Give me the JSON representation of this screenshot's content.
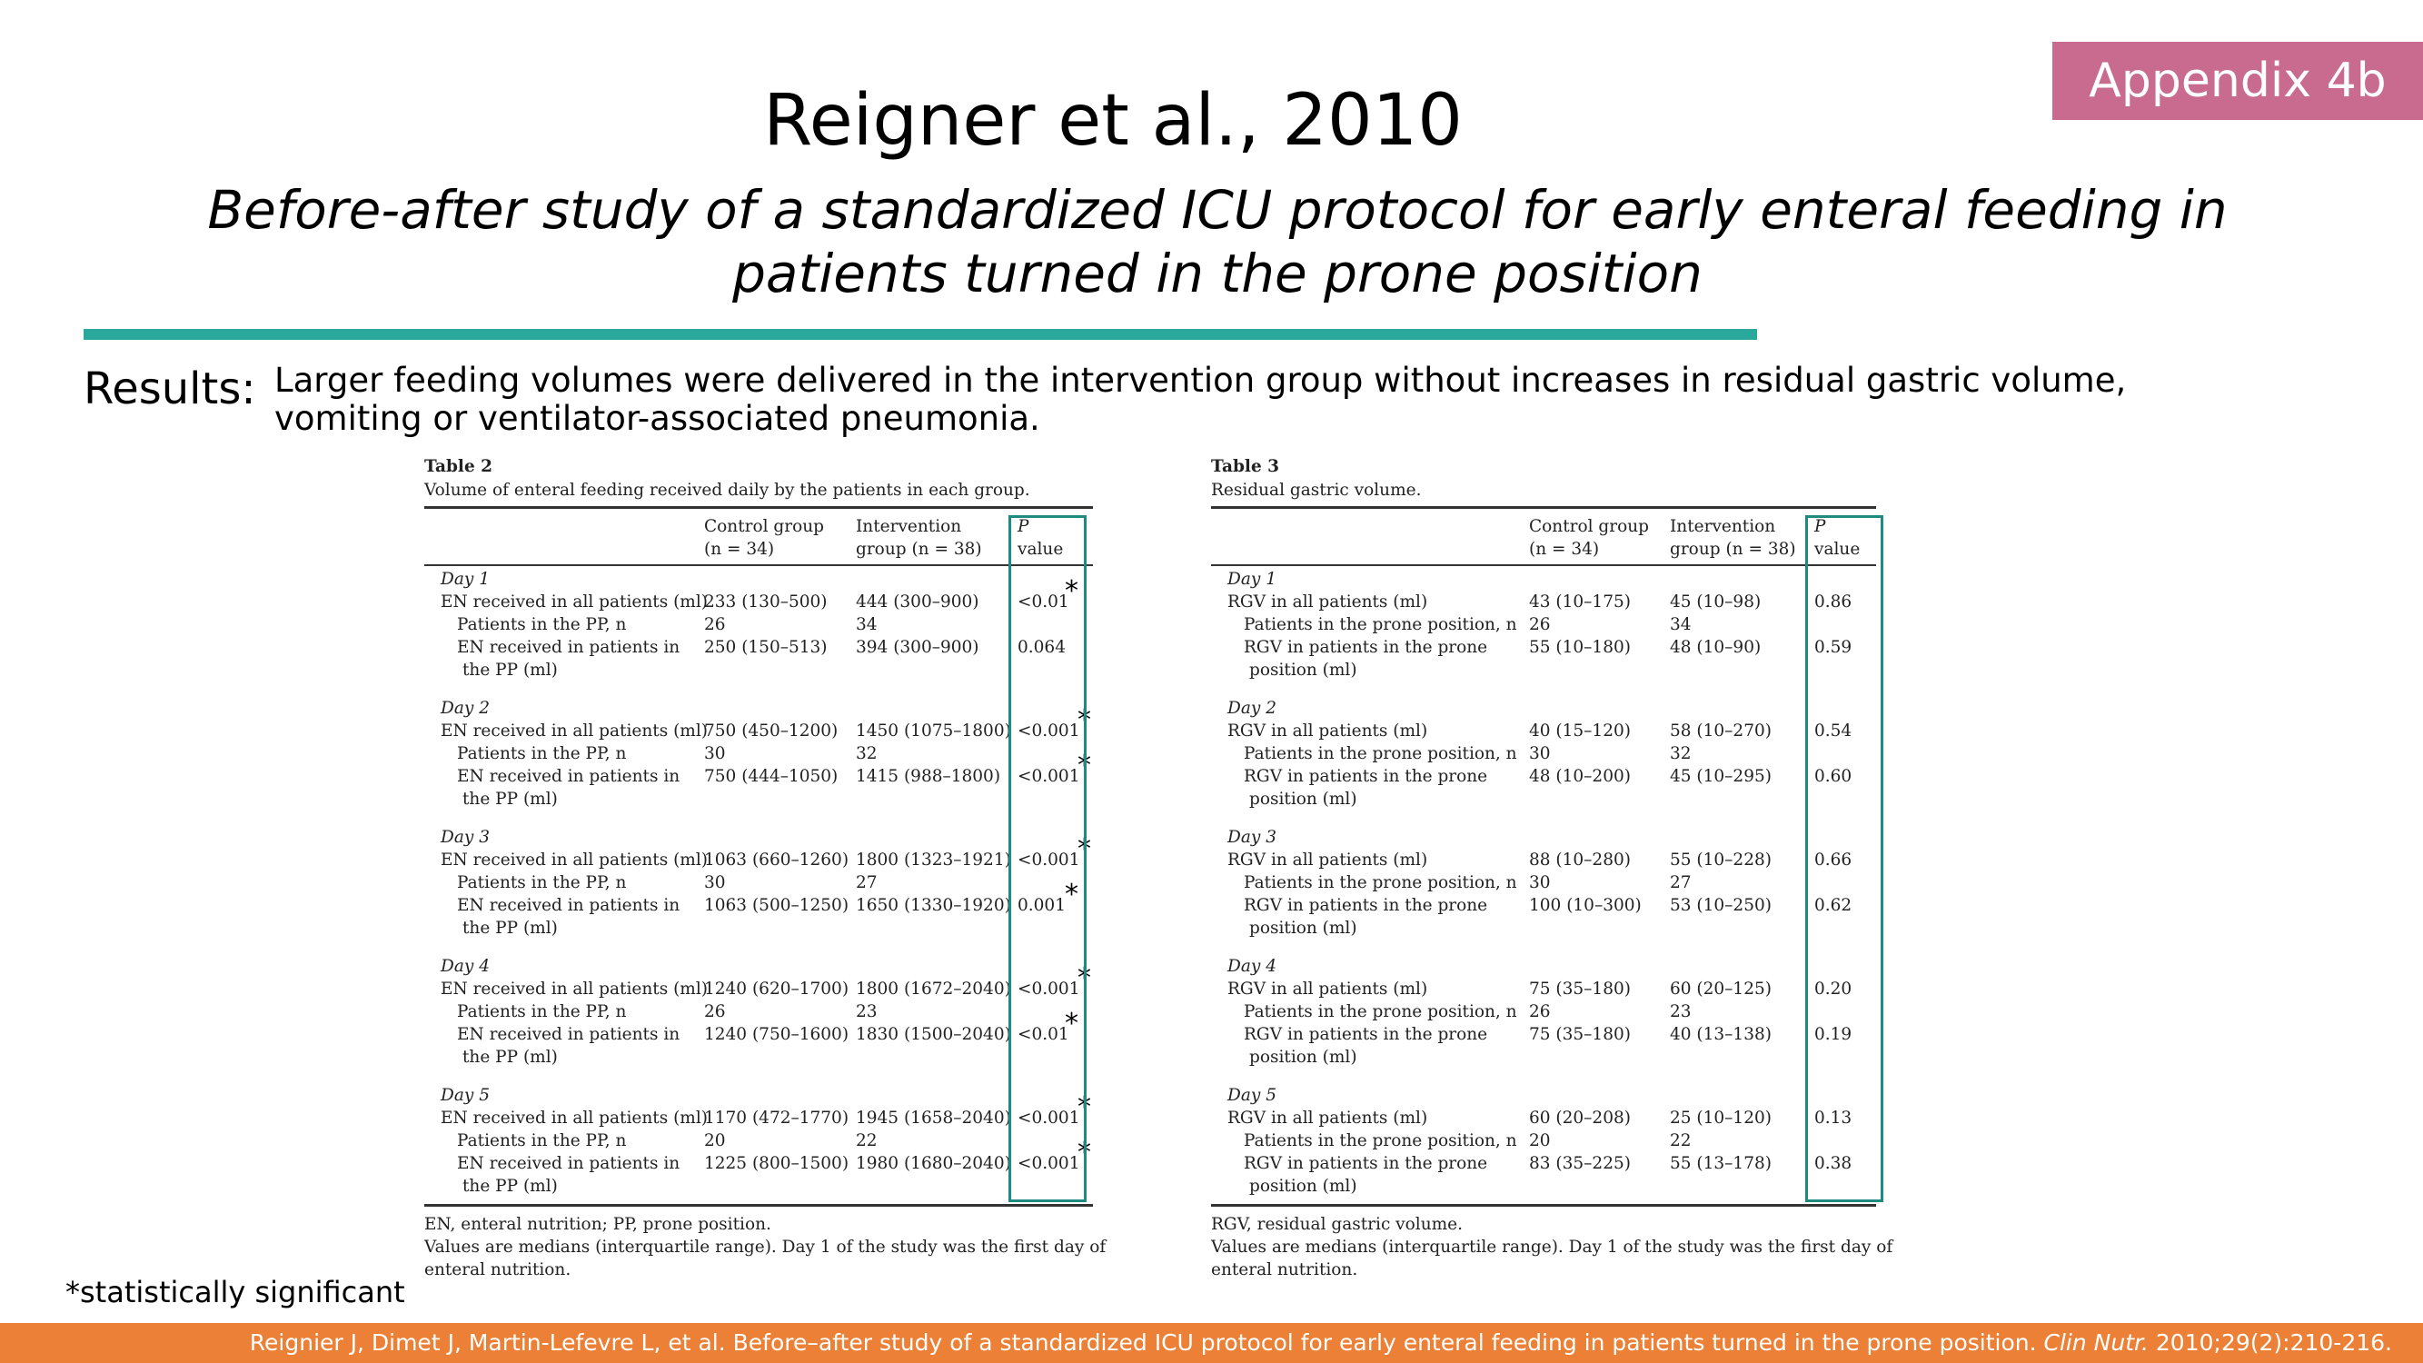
{
  "badge": "Appendix 4b",
  "title": "Reigner et al., 2010",
  "subtitle": "Before-after study of a standardized ICU protocol for early enteral feeding in patients turned in the prone position",
  "results": {
    "label": "Results:",
    "text": "Larger feeding volumes were delivered in the intervention group without increases in residual gastric volume, vomiting or ventilator-associated pneumonia."
  },
  "table2": {
    "title": "Table 2",
    "caption": "Volume of enteral feeding received daily by the patients in each group.",
    "headers": {
      "control_l1": "Control group",
      "control_l2": "(n = 34)",
      "intervention_l1": "Intervention",
      "intervention_l2": "group (n = 38)",
      "p_l1": "P",
      "p_l2": "value"
    },
    "days": [
      {
        "day": "Day 1",
        "rows": [
          {
            "label": "EN received in all patients (ml)",
            "control": "233 (130–500)",
            "intervention": "444 (300–900)",
            "p": "<0.01",
            "sig": true,
            "indent": false
          },
          {
            "label": "Patients in the PP, n",
            "control": "26",
            "intervention": "34",
            "p": "",
            "sig": false,
            "indent": true
          },
          {
            "label": "EN received in patients in",
            "label2": "the PP (ml)",
            "control": "250 (150–513)",
            "intervention": "394 (300–900)",
            "p": "0.064",
            "sig": false,
            "indent": true
          }
        ]
      },
      {
        "day": "Day 2",
        "rows": [
          {
            "label": "EN received in all patients (ml)",
            "control": "750 (450–1200)",
            "intervention": "1450 (1075–1800)",
            "p": "<0.001",
            "sig": true,
            "indent": false
          },
          {
            "label": "Patients in the PP, n",
            "control": "30",
            "intervention": "32",
            "p": "",
            "sig": false,
            "indent": true
          },
          {
            "label": "EN received in patients in",
            "label2": "the PP (ml)",
            "control": "750 (444–1050)",
            "intervention": "1415 (988–1800)",
            "p": "<0.001",
            "sig": true,
            "indent": true
          }
        ]
      },
      {
        "day": "Day 3",
        "rows": [
          {
            "label": "EN received in all patients (ml)",
            "control": "1063 (660–1260)",
            "intervention": "1800 (1323–1921)",
            "p": "<0.001",
            "sig": true,
            "indent": false
          },
          {
            "label": "Patients in the PP, n",
            "control": "30",
            "intervention": "27",
            "p": "",
            "sig": false,
            "indent": true
          },
          {
            "label": "EN received in patients in",
            "label2": "the PP (ml)",
            "control": "1063 (500–1250)",
            "intervention": "1650 (1330–1920)",
            "p": "0.001",
            "sig": true,
            "indent": true
          }
        ]
      },
      {
        "day": "Day 4",
        "rows": [
          {
            "label": "EN received in all patients (ml)",
            "control": "1240 (620–1700)",
            "intervention": "1800 (1672–2040)",
            "p": "<0.001",
            "sig": true,
            "indent": false
          },
          {
            "label": "Patients in the PP, n",
            "control": "26",
            "intervention": "23",
            "p": "",
            "sig": false,
            "indent": true
          },
          {
            "label": "EN received in patients in",
            "label2": "the PP (ml)",
            "control": "1240 (750–1600)",
            "intervention": "1830 (1500–2040)",
            "p": "<0.01",
            "sig": true,
            "indent": true
          }
        ]
      },
      {
        "day": "Day 5",
        "rows": [
          {
            "label": "EN received in all patients (ml)",
            "control": "1170 (472–1770)",
            "intervention": "1945 (1658–2040)",
            "p": "<0.001",
            "sig": true,
            "indent": false
          },
          {
            "label": "Patients in the PP, n",
            "control": "20",
            "intervention": "22",
            "p": "",
            "sig": false,
            "indent": true
          },
          {
            "label": "EN received in patients in",
            "label2": "the PP (ml)",
            "control": "1225 (800–1500)",
            "intervention": "1980 (1680–2040)",
            "p": "<0.001",
            "sig": true,
            "indent": true
          }
        ]
      }
    ],
    "footnotes": [
      "EN, enteral nutrition; PP, prone position.",
      "Values are medians (interquartile range). Day 1 of the study was the first day of",
      "enteral nutrition."
    ]
  },
  "table3": {
    "title": "Table 3",
    "caption": "Residual gastric volume.",
    "headers": {
      "control_l1": "Control group",
      "control_l2": "(n = 34)",
      "intervention_l1": "Intervention",
      "intervention_l2": "group (n = 38)",
      "p_l1": "P",
      "p_l2": "value"
    },
    "days": [
      {
        "day": "Day 1",
        "rows": [
          {
            "label": "RGV in all patients (ml)",
            "control": "43 (10–175)",
            "intervention": "45 (10–98)",
            "p": "0.86",
            "indent": false
          },
          {
            "label": "Patients in the prone position, n",
            "control": "26",
            "intervention": "34",
            "p": "",
            "indent": true
          },
          {
            "label": "RGV in patients in the prone",
            "label2": "position (ml)",
            "control": "55 (10–180)",
            "intervention": "48 (10–90)",
            "p": "0.59",
            "indent": true
          }
        ]
      },
      {
        "day": "Day 2",
        "rows": [
          {
            "label": "RGV in all patients (ml)",
            "control": "40 (15–120)",
            "intervention": "58 (10–270)",
            "p": "0.54",
            "indent": false
          },
          {
            "label": "Patients in the prone position, n",
            "control": "30",
            "intervention": "32",
            "p": "",
            "indent": true
          },
          {
            "label": "RGV in patients in the prone",
            "label2": "position (ml)",
            "control": "48 (10–200)",
            "intervention": "45 (10–295)",
            "p": "0.60",
            "indent": true
          }
        ]
      },
      {
        "day": "Day 3",
        "rows": [
          {
            "label": "RGV in all patients (ml)",
            "control": "88 (10–280)",
            "intervention": "55 (10–228)",
            "p": "0.66",
            "indent": false
          },
          {
            "label": "Patients in the prone position, n",
            "control": "30",
            "intervention": "27",
            "p": "",
            "indent": true
          },
          {
            "label": "RGV in patients in the prone",
            "label2": "position (ml)",
            "control": "100 (10–300)",
            "intervention": "53 (10–250)",
            "p": "0.62",
            "indent": true
          }
        ]
      },
      {
        "day": "Day 4",
        "rows": [
          {
            "label": "RGV in all patients (ml)",
            "control": "75 (35–180)",
            "intervention": "60 (20–125)",
            "p": "0.20",
            "indent": false
          },
          {
            "label": "Patients in the prone position, n",
            "control": "26",
            "intervention": "23",
            "p": "",
            "indent": true
          },
          {
            "label": "RGV in patients in the prone",
            "label2": "position (ml)",
            "control": "75 (35–180)",
            "intervention": "40 (13–138)",
            "p": "0.19",
            "indent": true
          }
        ]
      },
      {
        "day": "Day 5",
        "rows": [
          {
            "label": "RGV in all patients (ml)",
            "control": "60 (20–208)",
            "intervention": "25 (10–120)",
            "p": "0.13",
            "indent": false
          },
          {
            "label": "Patients in the prone position, n",
            "control": "20",
            "intervention": "22",
            "p": "",
            "indent": true
          },
          {
            "label": "RGV in patients in the prone",
            "label2": "position (ml)",
            "control": "83 (35–225)",
            "intervention": "55 (13–178)",
            "p": "0.38",
            "indent": true
          }
        ]
      }
    ],
    "footnotes": [
      "RGV, residual gastric volume.",
      "Values are medians (interquartile range). Day 1 of the study was the first day of",
      "enteral nutrition."
    ]
  },
  "significance_marker": "*",
  "significance_note": "*statistically significant",
  "citation": {
    "text": "Reignier J, Dimet J, Martin-Lefevre L, et al. Before–after study of a standardized ICU protocol for early enteral feeding in patients turned in the prone position. ",
    "journal": "Clin Nutr.",
    "details": " 2010;29(2):210-216."
  },
  "colors": {
    "badge_bg": "#c86b8e",
    "accent_rule": "#2aa89b",
    "pvalue_box": "#1f8a80",
    "footer_bg": "#ec8036"
  }
}
